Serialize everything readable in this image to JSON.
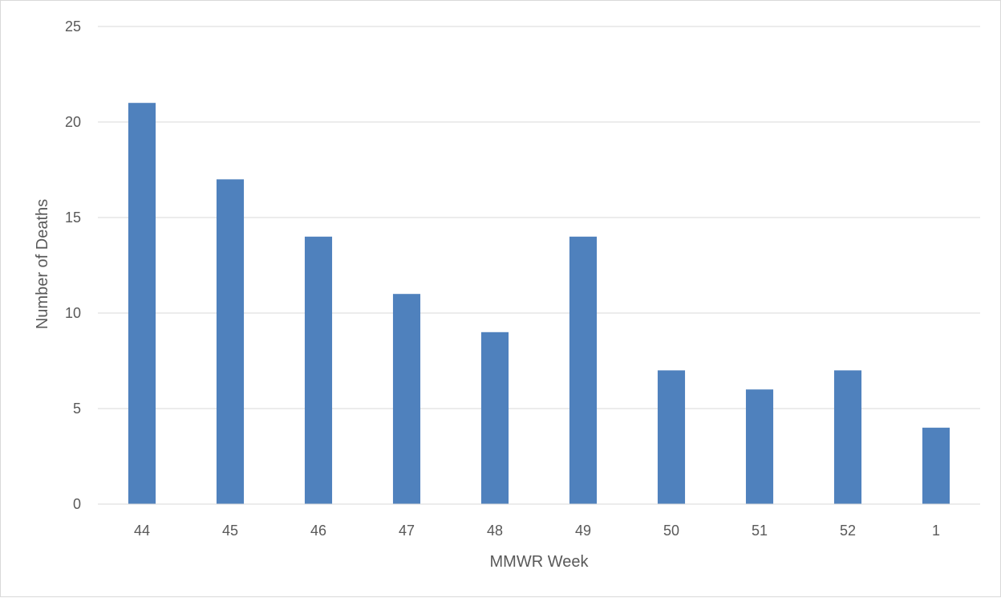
{
  "chart_data": {
    "type": "bar",
    "title": "",
    "xlabel": "MMWR Week",
    "ylabel": "Number of Deaths",
    "categories": [
      "44",
      "45",
      "46",
      "47",
      "48",
      "49",
      "50",
      "51",
      "52",
      "1"
    ],
    "values": [
      21,
      17,
      14,
      11,
      9,
      14,
      7,
      6,
      7,
      4
    ],
    "ylim": [
      0,
      25
    ],
    "yticks": [
      "0",
      "5",
      "10",
      "15",
      "20",
      "25"
    ],
    "grid": true,
    "legend": "none",
    "bar_color": "#4f81bd",
    "grid_color": "#d9d9d9",
    "text_color": "#595959"
  }
}
